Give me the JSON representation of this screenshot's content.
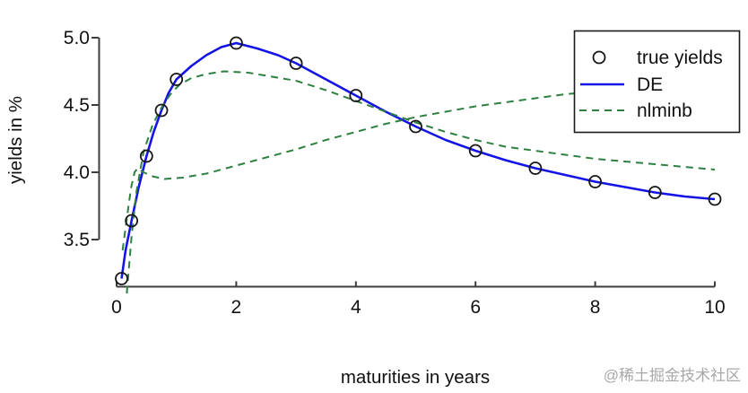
{
  "watermark": {
    "text": "@稀土掘金技术社区",
    "color": "#a8a8a8"
  },
  "chart_data": {
    "type": "line",
    "title": "",
    "xlabel": "maturities in years",
    "ylabel": "yields in %",
    "xlim": [
      0,
      10
    ],
    "ylim": [
      3.15,
      5.05
    ],
    "x_ticks": [
      0,
      2,
      4,
      6,
      8,
      10
    ],
    "x_tick_labels": [
      "0",
      "2",
      "4",
      "6",
      "8",
      "10"
    ],
    "y_ticks": [
      3.5,
      4.0,
      4.5,
      5.0
    ],
    "y_tick_labels": [
      "3.5",
      "4.0",
      "4.5",
      "5.0"
    ],
    "grid": false,
    "colors": {
      "de_blue": "#1414e6",
      "nlminb_green": "#2e8040",
      "marker_black": "#151515",
      "axis": "#3d3d3d"
    },
    "legend": {
      "position": "top-right",
      "entries": [
        {
          "marker": "open-circle",
          "label": "true yields"
        },
        {
          "marker": "solid-line",
          "label": "DE"
        },
        {
          "marker": "dashed-line",
          "label": "nlminb"
        }
      ]
    },
    "series": [
      {
        "name": "true yields",
        "type": "scatter",
        "marker": "open-circle",
        "color": "#151515",
        "points": [
          [
            0.083,
            3.21
          ],
          [
            0.25,
            3.64
          ],
          [
            0.5,
            4.12
          ],
          [
            0.75,
            4.46
          ],
          [
            1,
            4.69
          ],
          [
            2,
            4.96
          ],
          [
            3,
            4.81
          ],
          [
            4,
            4.57
          ],
          [
            5,
            4.34
          ],
          [
            6,
            4.16
          ],
          [
            7,
            4.03
          ],
          [
            8,
            3.93
          ],
          [
            9,
            3.85
          ],
          [
            10,
            3.8
          ]
        ]
      },
      {
        "name": "DE",
        "type": "line",
        "style": "solid",
        "color": "#1414e6",
        "points": [
          [
            0.083,
            3.21
          ],
          [
            0.15,
            3.42
          ],
          [
            0.25,
            3.64
          ],
          [
            0.37,
            3.89
          ],
          [
            0.5,
            4.12
          ],
          [
            0.62,
            4.3
          ],
          [
            0.75,
            4.46
          ],
          [
            0.87,
            4.59
          ],
          [
            1,
            4.69
          ],
          [
            1.25,
            4.79
          ],
          [
            1.5,
            4.87
          ],
          [
            1.75,
            4.93
          ],
          [
            2,
            4.96
          ],
          [
            2.35,
            4.92
          ],
          [
            2.7,
            4.87
          ],
          [
            3,
            4.81
          ],
          [
            3.5,
            4.69
          ],
          [
            4,
            4.57
          ],
          [
            4.5,
            4.45
          ],
          [
            5,
            4.34
          ],
          [
            5.5,
            4.24
          ],
          [
            6,
            4.16
          ],
          [
            6.5,
            4.09
          ],
          [
            7,
            4.03
          ],
          [
            7.5,
            3.98
          ],
          [
            8,
            3.93
          ],
          [
            8.5,
            3.89
          ],
          [
            9,
            3.85
          ],
          [
            9.5,
            3.82
          ],
          [
            10,
            3.8
          ]
        ]
      },
      {
        "name": "nlminb",
        "type": "line",
        "style": "dashed",
        "color": "#2e8040",
        "points": [
          [
            0.17,
            3.1
          ],
          [
            0.25,
            3.52
          ],
          [
            0.33,
            3.85
          ],
          [
            0.45,
            4.15
          ],
          [
            0.6,
            4.35
          ],
          [
            0.75,
            4.48
          ],
          [
            0.9,
            4.58
          ],
          [
            1.05,
            4.65
          ],
          [
            1.25,
            4.7
          ],
          [
            1.5,
            4.73
          ],
          [
            1.8,
            4.75
          ],
          [
            2.2,
            4.74
          ],
          [
            2.6,
            4.71
          ],
          [
            3,
            4.68
          ],
          [
            3.5,
            4.61
          ],
          [
            4,
            4.53
          ],
          [
            4.5,
            4.45
          ],
          [
            5,
            4.37
          ],
          [
            5.5,
            4.3
          ],
          [
            6,
            4.24
          ],
          [
            6.5,
            4.19
          ],
          [
            7,
            4.16
          ],
          [
            7.5,
            4.13
          ],
          [
            8,
            4.1
          ],
          [
            8.5,
            4.08
          ],
          [
            9,
            4.06
          ],
          [
            9.5,
            4.04
          ],
          [
            10,
            4.02
          ]
        ]
      },
      {
        "name": "nlminb",
        "type": "line",
        "style": "dashed",
        "color": "#2e8040",
        "points": [
          [
            0.1,
            3.42
          ],
          [
            0.16,
            3.62
          ],
          [
            0.24,
            3.88
          ],
          [
            0.3,
            4.0
          ],
          [
            0.35,
            4.03
          ],
          [
            0.45,
            4.0
          ],
          [
            0.6,
            3.97
          ],
          [
            0.8,
            3.95
          ],
          [
            1.1,
            3.96
          ],
          [
            1.5,
            3.99
          ],
          [
            2,
            4.05
          ],
          [
            2.5,
            4.11
          ],
          [
            3,
            4.17
          ],
          [
            3.5,
            4.24
          ],
          [
            4,
            4.3
          ],
          [
            4.5,
            4.36
          ],
          [
            5,
            4.41
          ],
          [
            5.5,
            4.45
          ],
          [
            6,
            4.49
          ],
          [
            6.5,
            4.52
          ],
          [
            7,
            4.55
          ],
          [
            7.5,
            4.58
          ],
          [
            8,
            4.6
          ],
          [
            8.5,
            4.62
          ],
          [
            9,
            4.64
          ],
          [
            9.5,
            4.66
          ],
          [
            10,
            4.67
          ]
        ]
      }
    ]
  }
}
